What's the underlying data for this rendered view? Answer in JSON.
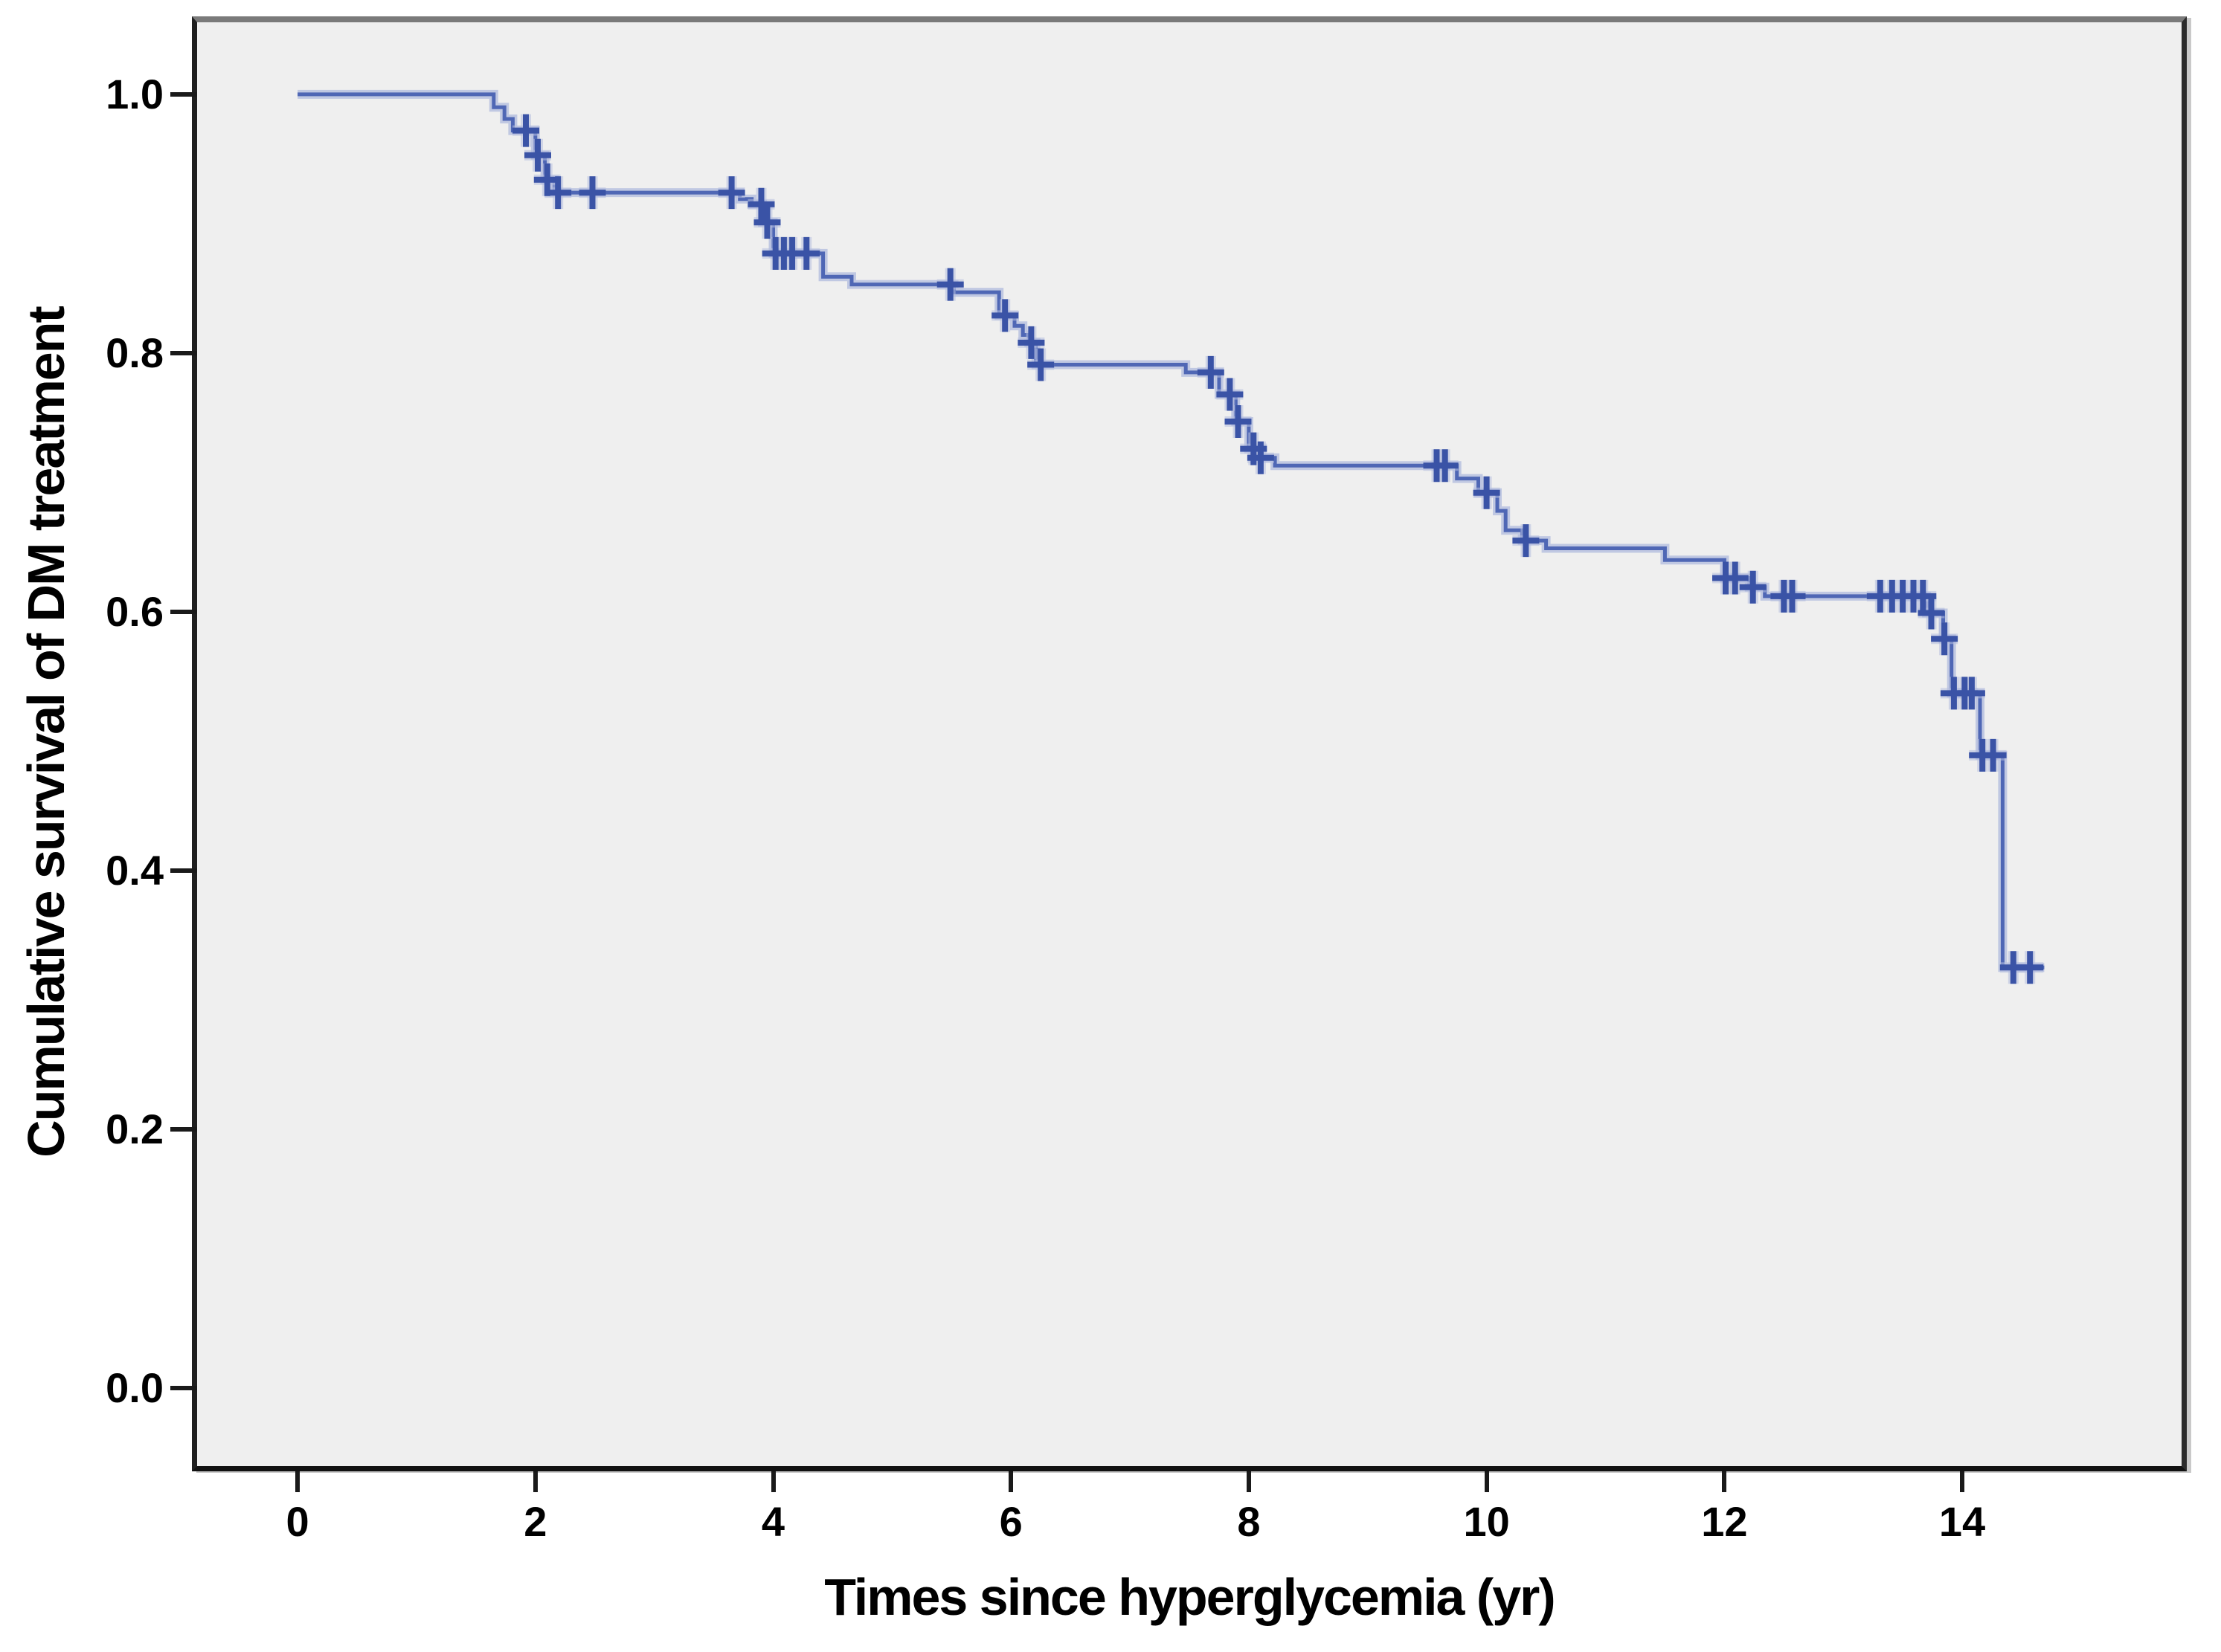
{
  "figure": {
    "background": "#ffffff",
    "plot_background": "#efefef",
    "border_top_color": "#7a7a7a",
    "border_color": "#1f1f1f",
    "shadow_color": "#c9c9c9"
  },
  "chart_data": {
    "type": "line",
    "subtype": "kaplan-meier-step-function",
    "title": "",
    "xlabel": "Times since hyperglycemia (yr)",
    "ylabel": "Cumulative survival of DM treatment",
    "xlim": [
      -0.845,
      15.845
    ],
    "ylim": [
      -0.0606,
      1.0557
    ],
    "grid": false,
    "legend": "none",
    "line_color": "#4f67b5",
    "halo_color": "#b4bede",
    "censor_color": "#3a53a6",
    "x_axis": {
      "ticks": [
        {
          "value": 0,
          "label": "0"
        },
        {
          "value": 2,
          "label": "2"
        },
        {
          "value": 4,
          "label": "4"
        },
        {
          "value": 6,
          "label": "6"
        },
        {
          "value": 8,
          "label": "8"
        },
        {
          "value": 10,
          "label": "10"
        },
        {
          "value": 12,
          "label": "12"
        },
        {
          "value": 14,
          "label": "14"
        }
      ]
    },
    "y_axis": {
      "ticks": [
        {
          "value": 1.0,
          "label": "1.0"
        },
        {
          "value": 0.8,
          "label": "0.8"
        },
        {
          "value": 0.6,
          "label": "0.6"
        },
        {
          "value": 0.4,
          "label": "0.4"
        },
        {
          "value": 0.2,
          "label": "0.2"
        },
        {
          "value": 0.0,
          "label": "0.0"
        }
      ]
    },
    "steps": [
      [
        0.0,
        1.0
      ],
      [
        1.65,
        0.99
      ],
      [
        1.74,
        0.981
      ],
      [
        1.81,
        0.972
      ],
      [
        2.0,
        0.953
      ],
      [
        2.08,
        0.934
      ],
      [
        2.16,
        0.924
      ],
      [
        3.72,
        0.919
      ],
      [
        3.82,
        0.915
      ],
      [
        3.91,
        0.901
      ],
      [
        4.0,
        0.877
      ],
      [
        4.42,
        0.859
      ],
      [
        4.66,
        0.853
      ],
      [
        5.52,
        0.847
      ],
      [
        5.9,
        0.829
      ],
      [
        6.03,
        0.821
      ],
      [
        6.1,
        0.814
      ],
      [
        6.15,
        0.808
      ],
      [
        6.21,
        0.791
      ],
      [
        7.47,
        0.785
      ],
      [
        7.75,
        0.768
      ],
      [
        7.89,
        0.747
      ],
      [
        8.0,
        0.726
      ],
      [
        8.07,
        0.719
      ],
      [
        8.22,
        0.713
      ],
      [
        9.75,
        0.703
      ],
      [
        9.93,
        0.692
      ],
      [
        10.09,
        0.678
      ],
      [
        10.16,
        0.663
      ],
      [
        10.3,
        0.655
      ],
      [
        10.5,
        0.649
      ],
      [
        11.5,
        0.64
      ],
      [
        12.0,
        0.626
      ],
      [
        12.21,
        0.619
      ],
      [
        12.34,
        0.612
      ],
      [
        13.7,
        0.599
      ],
      [
        13.84,
        0.579
      ],
      [
        13.91,
        0.537
      ],
      [
        14.15,
        0.489
      ],
      [
        14.34,
        0.325
      ]
    ],
    "end_time": 14.69,
    "censors": [
      [
        1.92,
        0.972
      ],
      [
        2.02,
        0.953
      ],
      [
        2.1,
        0.934
      ],
      [
        2.19,
        0.924
      ],
      [
        2.48,
        0.924
      ],
      [
        3.65,
        0.924
      ],
      [
        3.9,
        0.915
      ],
      [
        3.95,
        0.901
      ],
      [
        4.02,
        0.877
      ],
      [
        4.09,
        0.877
      ],
      [
        4.16,
        0.877
      ],
      [
        4.28,
        0.877
      ],
      [
        5.49,
        0.853
      ],
      [
        5.95,
        0.829
      ],
      [
        6.17,
        0.808
      ],
      [
        6.25,
        0.791
      ],
      [
        7.68,
        0.785
      ],
      [
        7.84,
        0.768
      ],
      [
        7.91,
        0.747
      ],
      [
        8.04,
        0.726
      ],
      [
        8.1,
        0.719
      ],
      [
        9.58,
        0.713
      ],
      [
        9.65,
        0.713
      ],
      [
        10.0,
        0.692
      ],
      [
        10.33,
        0.655
      ],
      [
        12.01,
        0.626
      ],
      [
        12.09,
        0.626
      ],
      [
        12.24,
        0.619
      ],
      [
        12.5,
        0.612
      ],
      [
        12.57,
        0.612
      ],
      [
        13.31,
        0.612
      ],
      [
        13.41,
        0.612
      ],
      [
        13.5,
        0.612
      ],
      [
        13.59,
        0.612
      ],
      [
        13.67,
        0.612
      ],
      [
        13.74,
        0.599
      ],
      [
        13.85,
        0.579
      ],
      [
        13.93,
        0.537
      ],
      [
        14.02,
        0.537
      ],
      [
        14.08,
        0.537
      ],
      [
        14.17,
        0.489
      ],
      [
        14.26,
        0.489
      ],
      [
        14.43,
        0.325
      ],
      [
        14.57,
        0.325
      ]
    ]
  }
}
